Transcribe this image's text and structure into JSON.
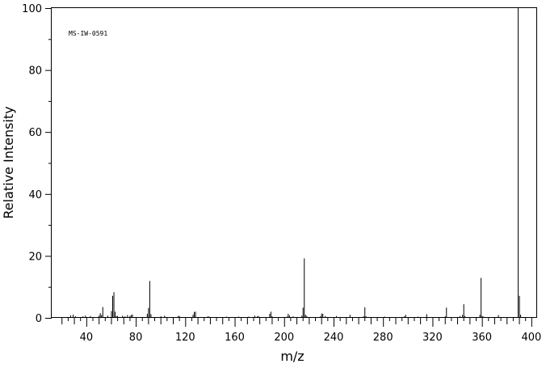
{
  "chart_data": {
    "type": "bar",
    "annotation": "MS-IW-0591",
    "xlabel": "m/z",
    "ylabel": "Relative Intensity",
    "xlim": [
      12,
      404
    ],
    "ylim": [
      0,
      100
    ],
    "x_ticks": [
      40,
      80,
      120,
      160,
      200,
      240,
      280,
      320,
      360,
      400
    ],
    "y_ticks": [
      0,
      20,
      40,
      60,
      80,
      100
    ],
    "grid": false,
    "x": [
      27,
      29,
      31,
      37,
      39,
      43,
      50,
      51,
      52,
      53,
      57,
      60,
      61,
      62,
      63,
      64,
      65,
      69,
      71,
      73,
      75,
      76,
      77,
      89,
      90,
      91,
      92,
      100,
      103,
      114,
      115,
      126,
      127,
      128,
      138,
      139,
      153,
      163,
      171,
      176,
      178,
      179,
      188,
      189,
      190,
      202,
      203,
      204,
      207,
      214,
      215,
      216,
      217,
      218,
      229,
      230,
      231,
      233,
      242,
      253,
      264,
      265,
      266,
      281,
      297,
      298,
      308,
      315,
      330,
      331,
      342,
      344,
      345,
      346,
      358,
      359,
      360,
      361,
      373,
      389,
      390,
      391
    ],
    "values": [
      0.8,
      1.0,
      0.5,
      0.5,
      0.7,
      0.6,
      0.7,
      1.5,
      0.9,
      3.5,
      0.7,
      2.2,
      7.1,
      8.3,
      2.0,
      0.6,
      0.6,
      0.7,
      0.5,
      0.9,
      0.6,
      0.9,
      1.1,
      1.3,
      3.2,
      11.9,
      1.2,
      0.5,
      0.7,
      0.6,
      0.6,
      1.0,
      1.9,
      2.0,
      0.5,
      0.4,
      0.4,
      0.4,
      0.4,
      0.7,
      0.5,
      0.6,
      1.3,
      2.0,
      0.5,
      0.4,
      1.3,
      0.8,
      0.5,
      0.7,
      3.3,
      19.2,
      1.0,
      0.6,
      0.5,
      1.4,
      1.3,
      0.6,
      0.6,
      1.0,
      0.5,
      3.4,
      0.5,
      0.4,
      0.5,
      1.0,
      0.4,
      1.2,
      0.5,
      3.3,
      0.6,
      1.0,
      4.4,
      0.6,
      1.0,
      12.9,
      0.6,
      0.4,
      0.9,
      100,
      7.1,
      1.0
    ]
  }
}
